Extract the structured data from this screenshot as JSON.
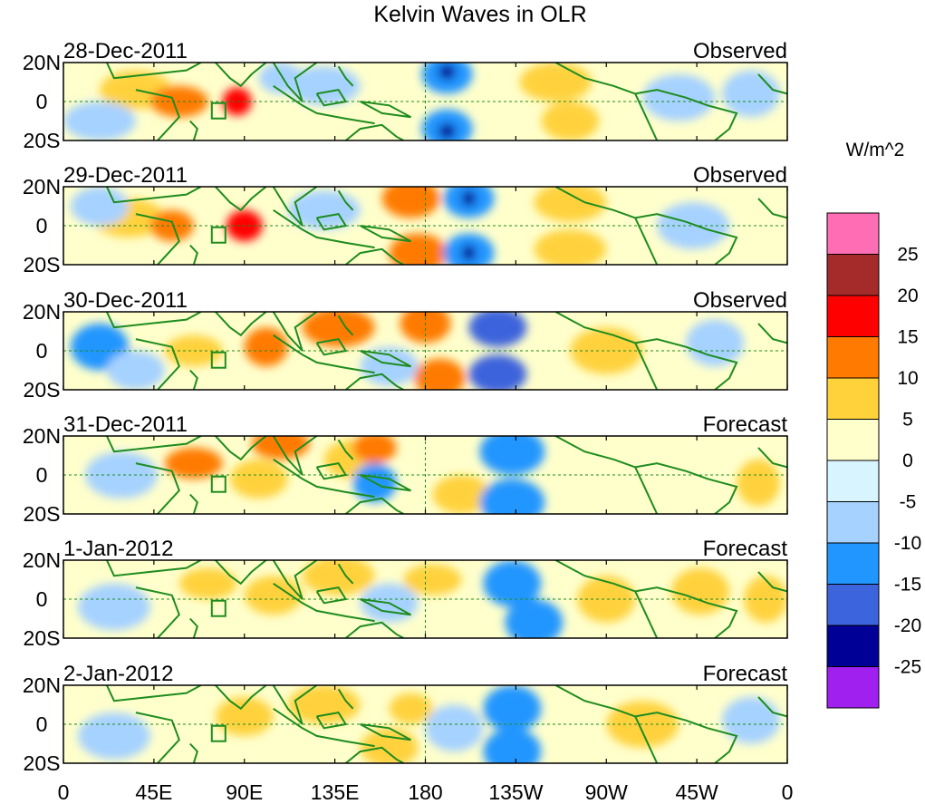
{
  "chart_data": {
    "type": "heatmap",
    "title": "Kelvin Waves in OLR",
    "units": "W/m^2",
    "x_ticks": [
      "0",
      "45E",
      "90E",
      "135E",
      "180",
      "135W",
      "90W",
      "45W",
      "0"
    ],
    "y_ticks": [
      "20N",
      "0",
      "20S"
    ],
    "colorbar": {
      "levels": [
        "25",
        "20",
        "15",
        "10",
        "5",
        "0",
        "-5",
        "-10",
        "-15",
        "-20",
        "-25"
      ],
      "colors": [
        "#ff6eb4",
        "#a52a2a",
        "#ff0000",
        "#ff7a00",
        "#ffd23c",
        "#ffffcc",
        "#d8f4ff",
        "#a6d2ff",
        "#2196ff",
        "#3c64dc",
        "#000096",
        "#a020f0"
      ]
    },
    "panels": [
      {
        "date": "28-Dec-2011",
        "status": "Observed"
      },
      {
        "date": "29-Dec-2011",
        "status": "Observed"
      },
      {
        "date": "30-Dec-2011",
        "status": "Observed"
      },
      {
        "date": "31-Dec-2011",
        "status": "Forecast"
      },
      {
        "date": "1-Jan-2012",
        "status": "Forecast"
      },
      {
        "date": "2-Jan-2012",
        "status": "Forecast"
      }
    ]
  }
}
